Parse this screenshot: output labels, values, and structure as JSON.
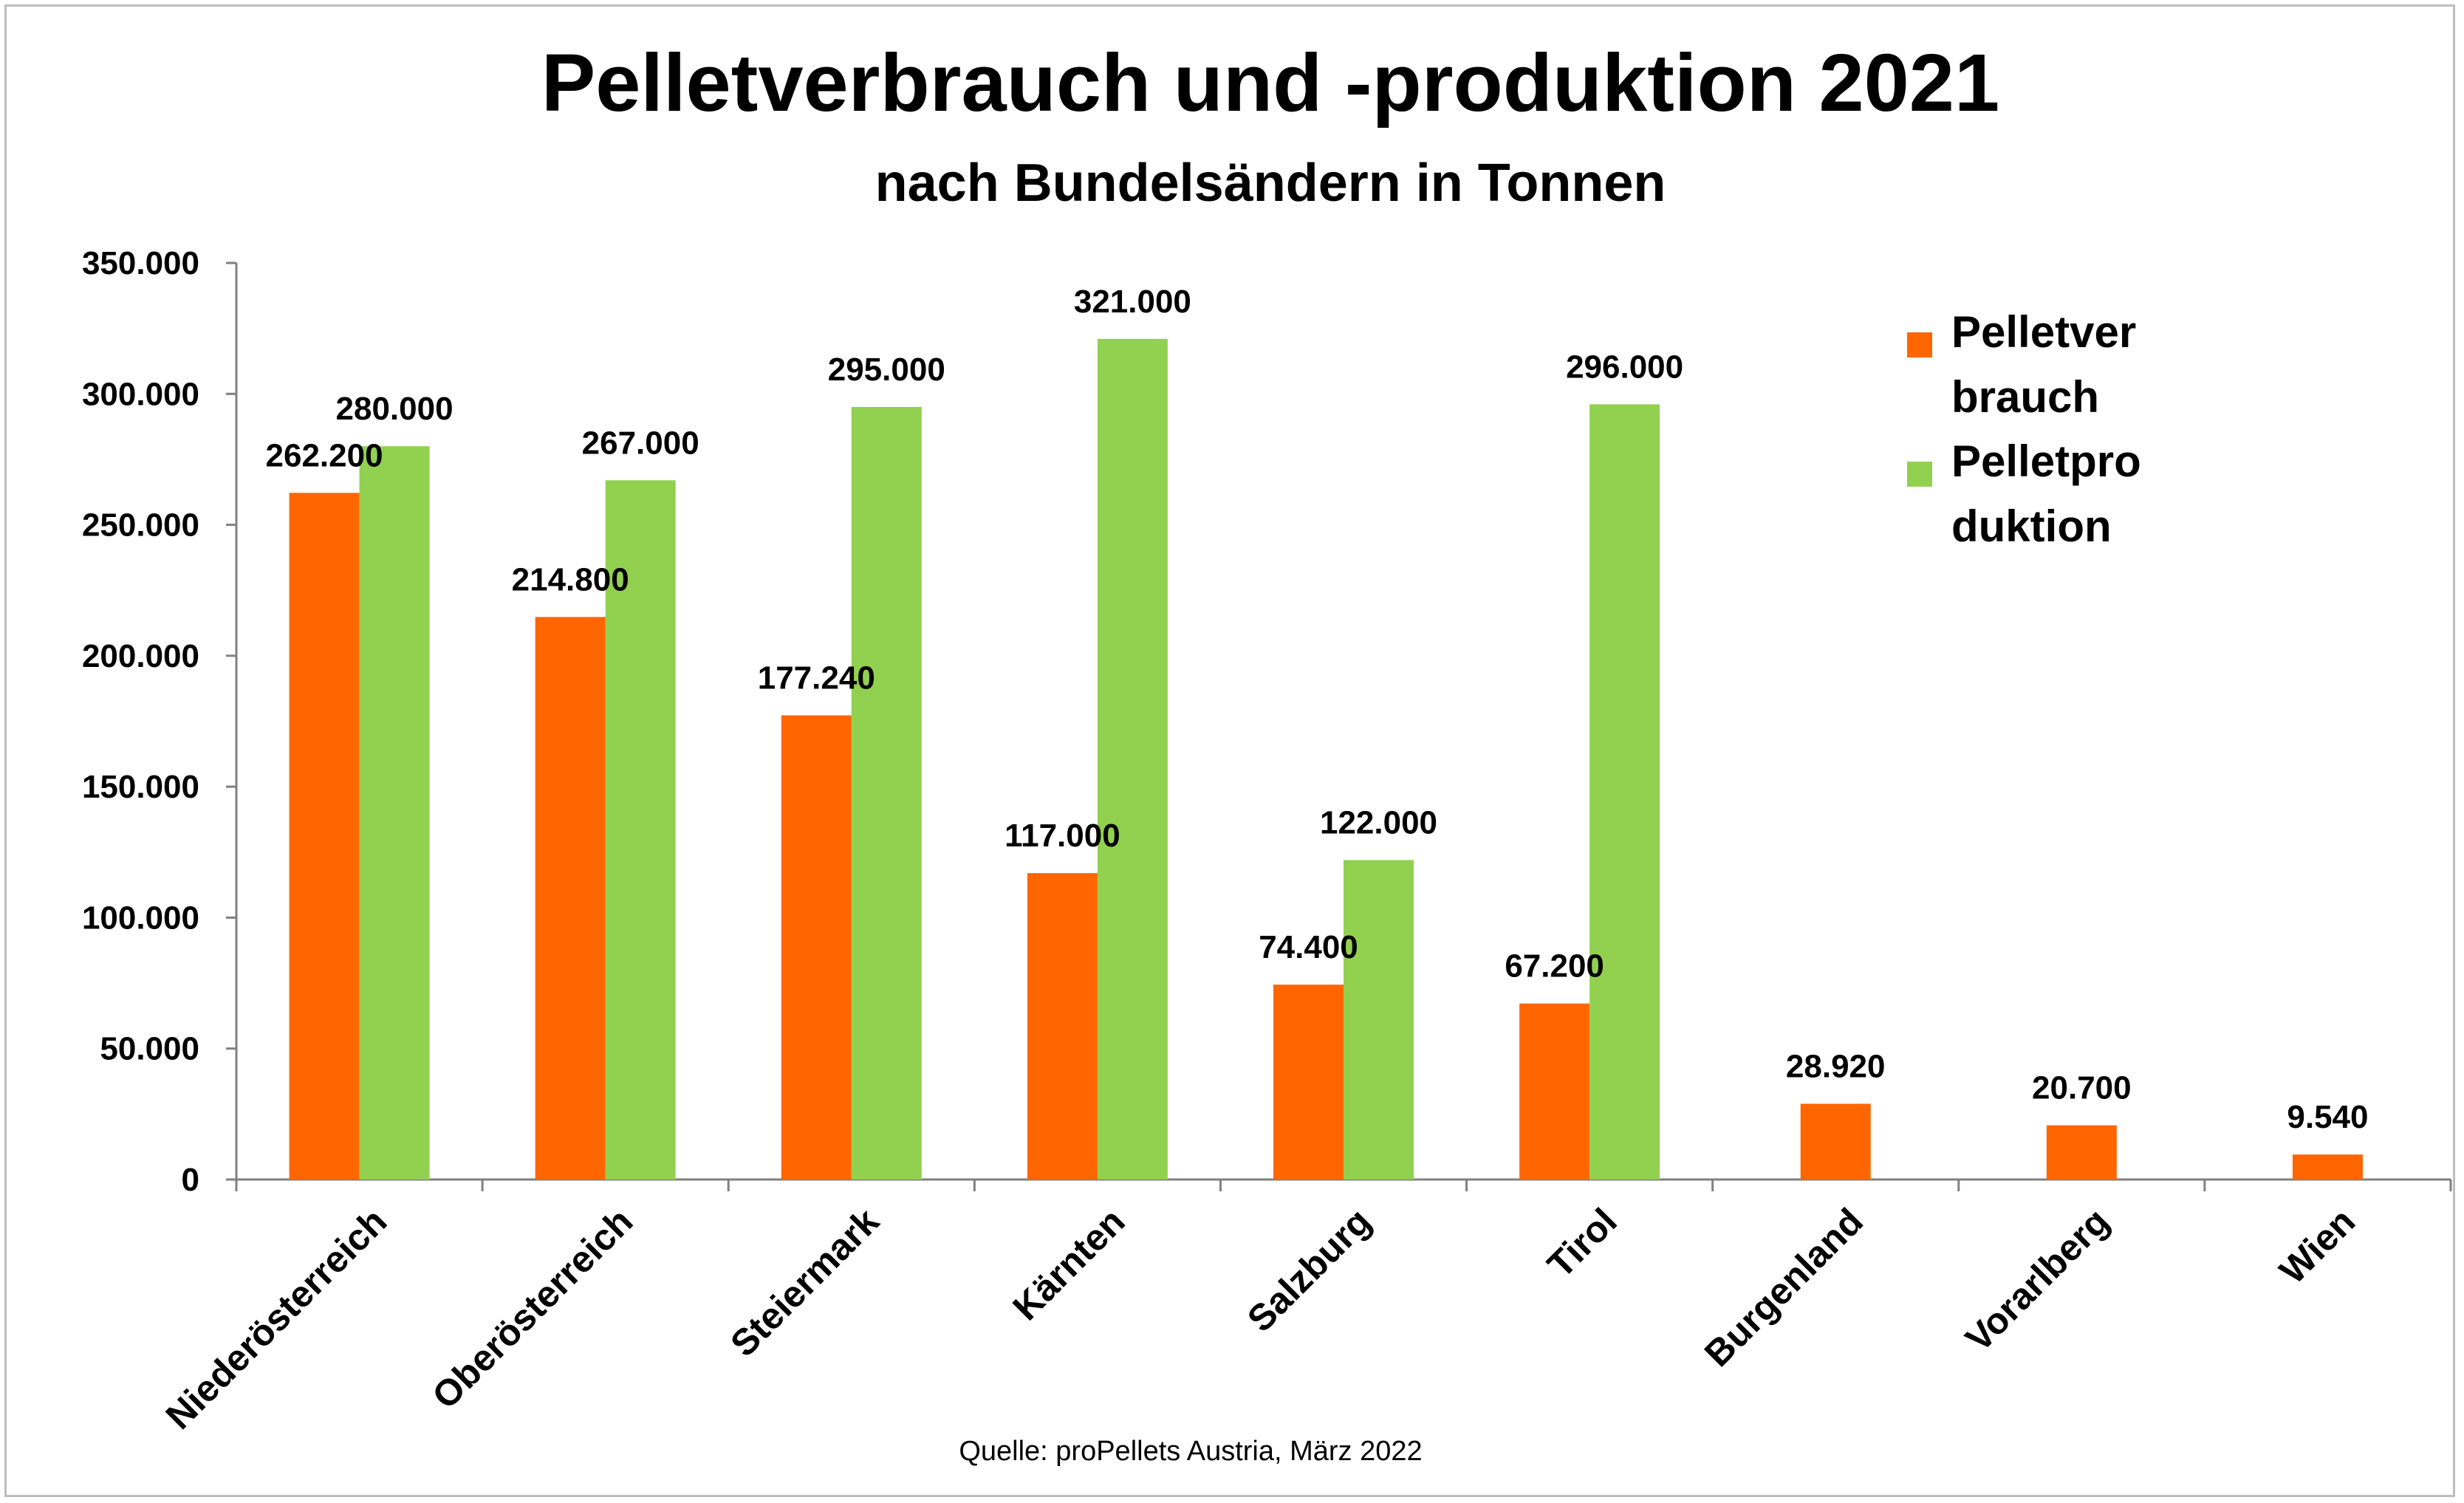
{
  "chart_data": {
    "type": "bar",
    "title": "Pelletverbrauch und -produktion 2021",
    "subtitle": "nach Bundelsändern in Tonnen",
    "source": "Quelle: proPellets Austria, März 2022",
    "categories": [
      "Niederösterreich",
      "Oberösterreich",
      "Steiermark",
      "Kärnten",
      "Salzburg",
      "Tirol",
      "Burgenland",
      "Vorarlberg",
      "Wien"
    ],
    "series": [
      {
        "name": "Pelletverbrauch",
        "legend_lines": [
          "Pelletver",
          "brauch"
        ],
        "color": "#ff6600",
        "values": [
          262200,
          214800,
          177240,
          117000,
          74400,
          67200,
          28920,
          20700,
          9540
        ],
        "labels": [
          "262.200",
          "214.800",
          "177.240",
          "117.000",
          "74.400",
          "67.200",
          "28.920",
          "20.700",
          "9.540"
        ]
      },
      {
        "name": "Pelletproduktion",
        "legend_lines": [
          "Pelletpro",
          "duktion"
        ],
        "color": "#92d050",
        "values": [
          280000,
          267000,
          295000,
          321000,
          122000,
          296000,
          null,
          null,
          null
        ],
        "labels": [
          "280.000",
          "267.000",
          "295.000",
          "321.000",
          "122.000",
          "296.000",
          null,
          null,
          null
        ]
      }
    ],
    "ylim": [
      0,
      350000
    ],
    "yticks": [
      0,
      50000,
      100000,
      150000,
      200000,
      250000,
      300000,
      350000
    ],
    "ytick_labels": [
      "0",
      "50.000",
      "100.000",
      "150.000",
      "200.000",
      "250.000",
      "300.000",
      "350.000"
    ],
    "legend": "right",
    "grid": false
  }
}
